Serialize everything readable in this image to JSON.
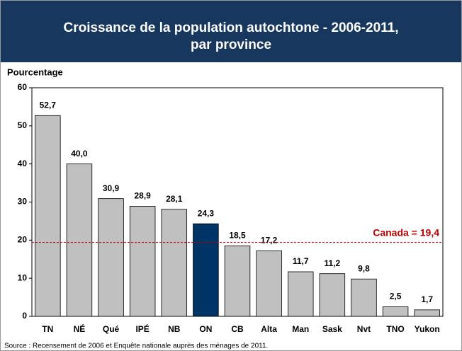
{
  "chart_data": {
    "type": "bar",
    "title": "Croissance de la population autochtone - 2006-2011,",
    "subtitle": "par province",
    "y_label": "Pourcentage",
    "categories": [
      "TN",
      "NÉ",
      "Qué",
      "IPÉ",
      "NB",
      "ON",
      "CB",
      "Alta",
      "Man",
      "Sask",
      "Nvt",
      "TNO",
      "Yukon"
    ],
    "values": [
      52.7,
      40.0,
      30.9,
      28.9,
      28.1,
      24.3,
      18.5,
      17.2,
      11.7,
      11.2,
      9.8,
      2.5,
      1.7
    ],
    "value_labels": [
      "52,7",
      "40,0",
      "30,9",
      "28,9",
      "28,1",
      "24,3",
      "18,5",
      "17,2",
      "11,7",
      "11,2",
      "9,8",
      "2,5",
      "1,7"
    ],
    "colors": [
      "#c0c0c0",
      "#c0c0c0",
      "#c0c0c0",
      "#c0c0c0",
      "#c0c0c0",
      "#003366",
      "#c0c0c0",
      "#c0c0c0",
      "#c0c0c0",
      "#c0c0c0",
      "#c0c0c0",
      "#c0c0c0",
      "#c0c0c0"
    ],
    "reference": {
      "value": 19.4,
      "label": "Canada = 19,4",
      "color": "#c00000"
    },
    "ylim": [
      0,
      60
    ],
    "yticks": [
      0,
      10,
      20,
      30,
      40,
      50,
      60
    ],
    "grid": false,
    "source": "Source : Recensement de 2006 et Enquête nationale auprès des ménages de 2011."
  }
}
